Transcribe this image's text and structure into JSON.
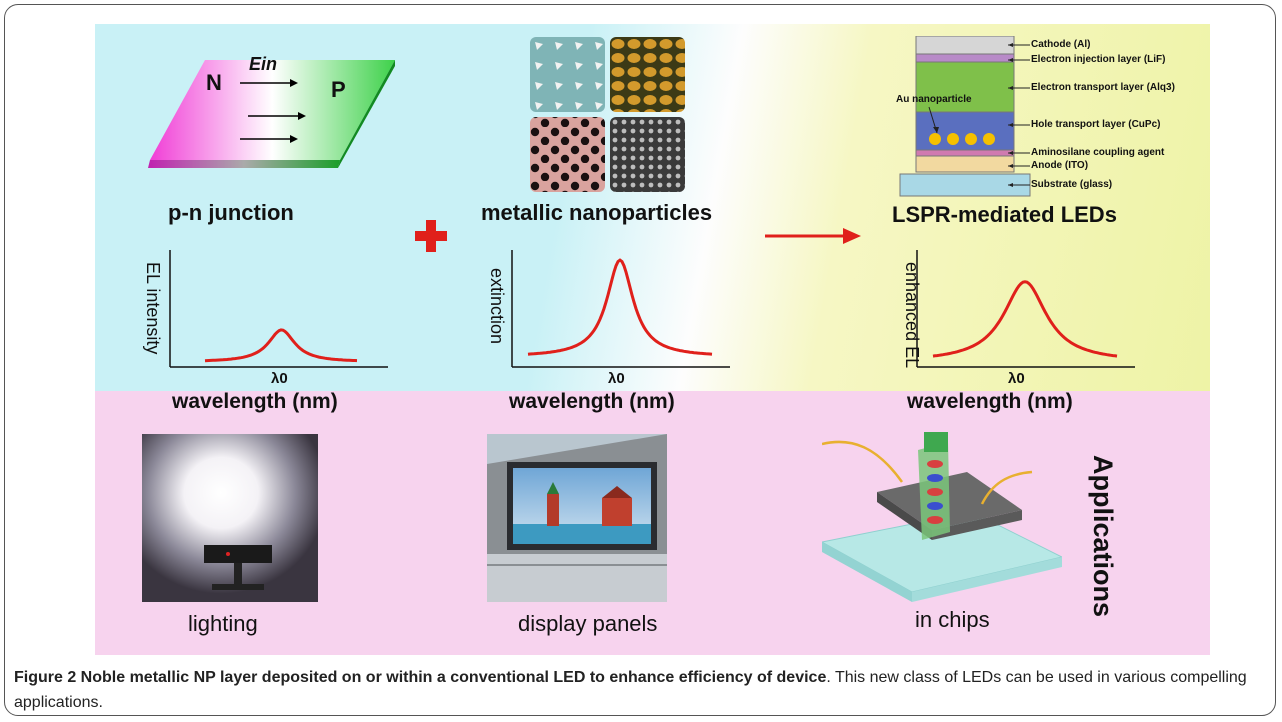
{
  "figure": {
    "pn_junction": {
      "label_N": "N",
      "label_P": "P",
      "label_E": "Ein",
      "title": "p-n junction"
    },
    "nanoparticles": {
      "title": "metallic nanoparticles"
    },
    "leds": {
      "title": "LSPR-mediated LEDs",
      "layers": [
        "Cathode (Al)",
        "Electron injection layer (LiF)",
        "Electron transport layer (Alq3)",
        "Hole transport layer (CuPc)",
        "Aminosilane coupling agent",
        "Anode (ITO)",
        "Substrate (glass)"
      ],
      "au_label": "Au nanoparticle"
    },
    "plus_color": "#e0201b",
    "arrow_color": "#e0201b",
    "plots": [
      {
        "ylabel": "EL intensity",
        "xlabel": "wavelength (nm)",
        "tick": "λ0"
      },
      {
        "ylabel": "extinction",
        "xlabel": "wavelength (nm)",
        "tick": "λ0"
      },
      {
        "ylabel": "enhanced EL",
        "xlabel": "wavelength (nm)",
        "tick": "λ0"
      }
    ],
    "applications": {
      "title": "Applications",
      "items": [
        "lighting",
        "display panels",
        "in chips"
      ]
    }
  },
  "caption": {
    "bold": "Figure 2 Noble metallic NP layer deposited on or within a conventional LED to enhance efficiency of device",
    "rest": ". This new class of LEDs can be used in various compelling applications."
  },
  "chart_data": [
    {
      "type": "line",
      "ylabel": "EL intensity",
      "xlabel": "wavelength (nm)",
      "x_tick": "λ0",
      "peak_height": 0.3
    },
    {
      "type": "line",
      "ylabel": "extinction",
      "xlabel": "wavelength (nm)",
      "x_tick": "λ0",
      "peak_height": 0.95
    },
    {
      "type": "line",
      "ylabel": "enhanced EL",
      "xlabel": "wavelength (nm)",
      "x_tick": "λ0",
      "peak_height": 0.75
    }
  ]
}
